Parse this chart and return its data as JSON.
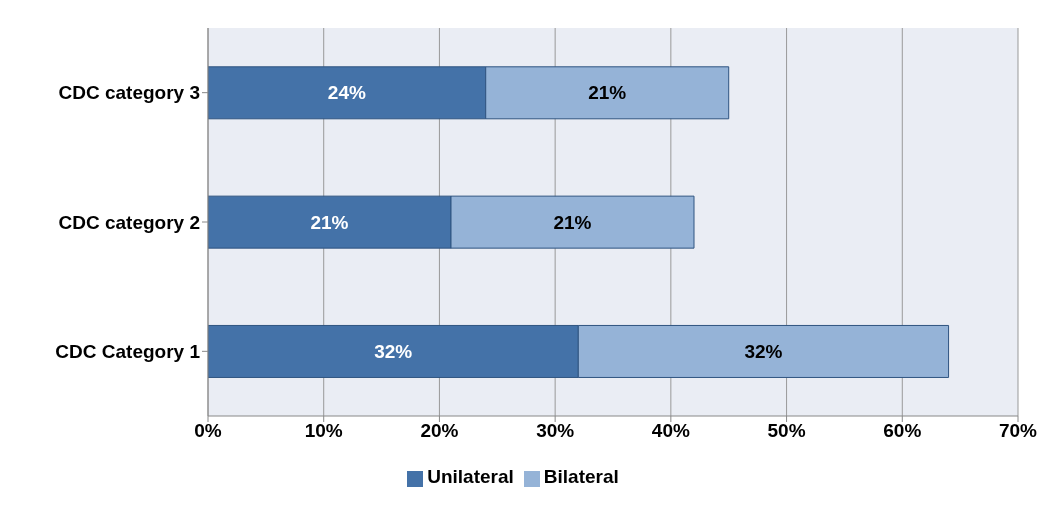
{
  "chart_data": {
    "type": "bar",
    "orientation": "horizontal",
    "stacked": true,
    "categories": [
      "CDC category 3",
      "CDC category 2",
      "CDC Category 1"
    ],
    "series": [
      {
        "name": "Unilateral",
        "color": "#4472a8",
        "values": [
          24,
          21,
          32
        ],
        "value_labels": [
          "24%",
          "21%",
          "32%"
        ]
      },
      {
        "name": "Bilateral",
        "color": "#95b3d7",
        "values": [
          21,
          21,
          32
        ],
        "value_labels": [
          "21%",
          "21%",
          "32%"
        ]
      }
    ],
    "xlim": [
      0,
      70
    ],
    "xticks": [
      {
        "value": 0,
        "label": "0%"
      },
      {
        "value": 10,
        "label": "10%"
      },
      {
        "value": 20,
        "label": "20%"
      },
      {
        "value": 30,
        "label": "30%"
      },
      {
        "value": 40,
        "label": "40%"
      },
      {
        "value": 50,
        "label": "50%"
      },
      {
        "value": 60,
        "label": "60%"
      },
      {
        "value": 70,
        "label": "70%"
      }
    ],
    "grid": "x",
    "legend": "bottom"
  }
}
